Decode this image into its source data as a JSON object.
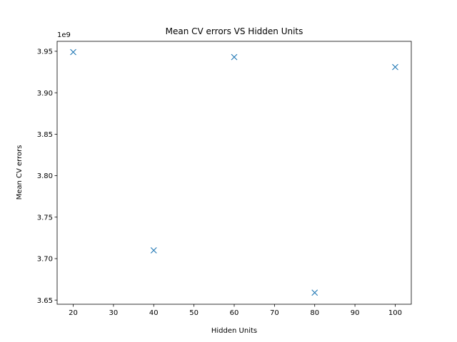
{
  "chart_data": {
    "type": "scatter",
    "title": "Mean CV errors VS Hidden Units",
    "xlabel": "Hidden Units",
    "ylabel": "Mean CV errors",
    "y_offset_label": "1e9",
    "xlim": [
      16,
      104
    ],
    "ylim": [
      3.645,
      3.962
    ],
    "x_ticks": [
      20,
      30,
      40,
      50,
      60,
      70,
      80,
      90,
      100
    ],
    "y_ticks": [
      3.65,
      3.7,
      3.75,
      3.8,
      3.85,
      3.9,
      3.95
    ],
    "y_tick_labels": [
      "3.65",
      "3.70",
      "3.75",
      "3.80",
      "3.85",
      "3.90",
      "3.95"
    ],
    "grid": false,
    "marker": "x",
    "color": "#1f77b4",
    "x": [
      20,
      40,
      60,
      80,
      100
    ],
    "y": [
      3.949,
      3.71,
      3.943,
      3.659,
      3.931
    ]
  }
}
